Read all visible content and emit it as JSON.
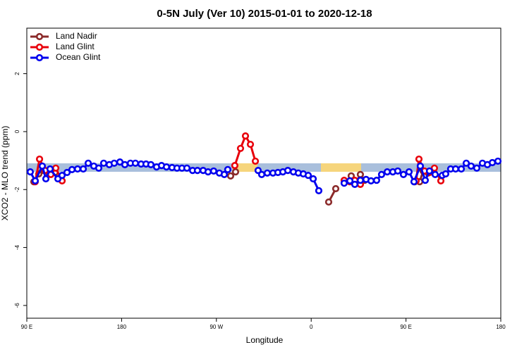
{
  "chart_data": {
    "type": "line",
    "title": "0-5N July (Ver 10)   2015-01-01 to 2020-12-18",
    "x_label": "Longitude",
    "y_label": "XCO2 - MLO trend (ppm)",
    "xlim": [
      90,
      540
    ],
    "ylim": [
      -6.44,
      3.57
    ],
    "xticks": [
      {
        "value": 90,
        "label": "90 E"
      },
      180,
      {
        "value": 270,
        "label": "90 W"
      },
      {
        "value": 360,
        "label": "0"
      },
      {
        "value": 450,
        "label": "90 E"
      },
      {
        "value": 540,
        "label": "180"
      }
    ],
    "yticks": [
      -6,
      -4,
      -2,
      0,
      2
    ],
    "legend": "top-left",
    "series": [
      {
        "name": "Land Nadir",
        "color": "#8b2a2a",
        "x": [
          96.7,
          101.4,
          106.1,
          111.4,
          116.8,
          null,
          283.5,
          288.2,
          null,
          376.6,
          383.3,
          null,
          398.0,
          402.7,
          406.7,
          410.7,
          null,
          458.3,
          463.0,
          466.3,
          471.0,
          475.7
        ],
        "values": [
          -1.73,
          -1.46,
          -1.34,
          -1.46,
          -1.41,
          null,
          -1.53,
          -1.39,
          null,
          -2.43,
          -1.97,
          null,
          -1.53,
          -1.75,
          -1.48,
          -1.68,
          null,
          -1.73,
          -1.73,
          -1.36,
          -1.43,
          -1.39
        ]
      },
      {
        "name": "Land Glint",
        "color": "#e8000b",
        "x": [
          98.0,
          102.1,
          107.4,
          112.8,
          117.5,
          123.5,
          null,
          287.5,
          292.9,
          297.6,
          302.3,
          307.0,
          null,
          391.3,
          396.7,
          401.4,
          406.7,
          null,
          459.6,
          462.3,
          467.6,
          472.3,
          477.0,
          483.1
        ],
        "values": [
          -1.73,
          -0.95,
          -1.34,
          -1.48,
          -1.26,
          -1.7,
          null,
          -1.17,
          -0.58,
          -0.15,
          -0.44,
          -1.02,
          null,
          -1.68,
          -1.73,
          -1.68,
          -1.82,
          null,
          -1.7,
          -0.95,
          -1.36,
          -1.41,
          -1.26,
          -1.7
        ]
      },
      {
        "name": "Ocean Glint",
        "color": "#0000ee",
        "x": [
          93.3,
          98.0,
          104.7,
          108.1,
          112.1,
          119.5,
          123.5,
          128.2,
          132.9,
          138.2,
          143.6,
          148.3,
          153.6,
          158.3,
          163.0,
          168.3,
          173.0,
          178.4,
          183.1,
          188.4,
          193.1,
          198.5,
          203.2,
          207.8,
          213.2,
          217.9,
          222.6,
          227.9,
          232.6,
          237.3,
          242.0,
          247.4,
          252.0,
          257.4,
          262.1,
          267.4,
          272.8,
          277.5,
          280.8,
          null,
          309.6,
          313.0,
          318.3,
          323.7,
          328.4,
          333.1,
          337.8,
          343.1,
          347.8,
          352.5,
          357.2,
          361.9,
          367.2,
          null,
          391.3,
          396.7,
          401.4,
          406.7,
          412.1,
          416.8,
          422.1,
          426.8,
          432.2,
          437.5,
          442.2,
          447.6,
          452.9,
          457.6,
          463.6,
          468.3,
          472.3,
          477.7,
          484.4,
          487.7,
          492.4,
          497.1,
          502.5,
          507.2,
          511.8,
          517.2,
          522.6,
          527.3,
          532.0,
          537.3
        ],
        "values": [
          -1.39,
          -1.7,
          -1.19,
          -1.63,
          -1.29,
          -1.63,
          -1.51,
          -1.41,
          -1.31,
          -1.29,
          -1.29,
          -1.09,
          -1.19,
          -1.26,
          -1.09,
          -1.14,
          -1.09,
          -1.05,
          -1.14,
          -1.09,
          -1.09,
          -1.12,
          -1.12,
          -1.14,
          -1.22,
          -1.17,
          -1.22,
          -1.24,
          -1.26,
          -1.26,
          -1.26,
          -1.34,
          -1.34,
          -1.34,
          -1.39,
          -1.36,
          -1.43,
          -1.48,
          -1.31,
          null,
          -1.34,
          -1.48,
          -1.43,
          -1.43,
          -1.41,
          -1.39,
          -1.34,
          -1.39,
          -1.43,
          -1.46,
          -1.51,
          -1.63,
          -2.04,
          null,
          -1.78,
          -1.7,
          -1.82,
          -1.68,
          -1.65,
          -1.7,
          -1.68,
          -1.48,
          -1.39,
          -1.39,
          -1.36,
          -1.48,
          -1.39,
          -1.73,
          -1.19,
          -1.68,
          -1.36,
          -1.48,
          -1.51,
          -1.46,
          -1.29,
          -1.29,
          -1.29,
          -1.09,
          -1.19,
          -1.26,
          -1.09,
          -1.14,
          -1.07,
          -1.02
        ]
      }
    ]
  }
}
